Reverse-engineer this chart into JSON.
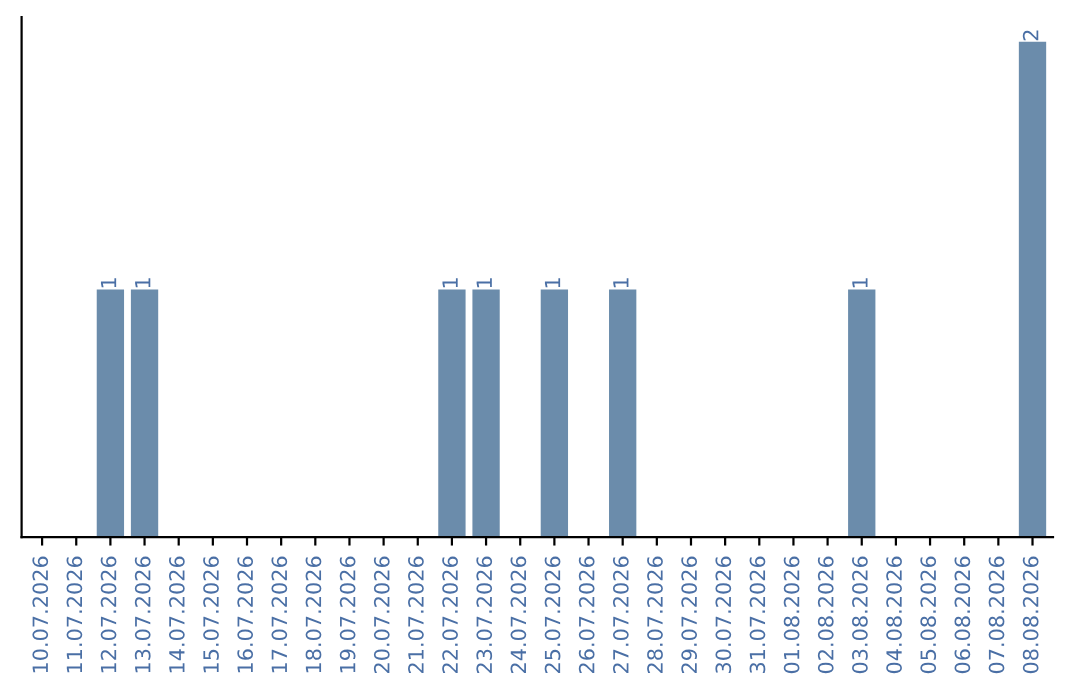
{
  "chart_data": {
    "type": "bar",
    "categories": [
      "10.07.2026",
      "11.07.2026",
      "12.07.2026",
      "13.07.2026",
      "14.07.2026",
      "15.07.2026",
      "16.07.2026",
      "17.07.2026",
      "18.07.2026",
      "19.07.2026",
      "20.07.2026",
      "21.07.2026",
      "22.07.2026",
      "23.07.2026",
      "24.07.2026",
      "25.07.2026",
      "26.07.2026",
      "27.07.2026",
      "28.07.2026",
      "29.07.2026",
      "30.07.2026",
      "31.07.2026",
      "01.08.2026",
      "02.08.2026",
      "03.08.2026",
      "04.08.2026",
      "05.08.2026",
      "06.08.2026",
      "07.08.2026",
      "08.08.2026"
    ],
    "values": [
      0,
      0,
      1,
      1,
      0,
      0,
      0,
      0,
      0,
      0,
      0,
      0,
      1,
      1,
      0,
      1,
      0,
      1,
      0,
      0,
      0,
      0,
      0,
      0,
      1,
      0,
      0,
      0,
      0,
      2
    ],
    "value_labels": [
      null,
      null,
      "1",
      "1",
      null,
      null,
      null,
      null,
      null,
      null,
      null,
      null,
      "1",
      "1",
      null,
      "1",
      null,
      "1",
      null,
      null,
      null,
      null,
      null,
      null,
      "1",
      null,
      null,
      null,
      null,
      "2"
    ],
    "color": "#6b8cab",
    "tick_labels": "x",
    "grid": false,
    "legend": false
  }
}
